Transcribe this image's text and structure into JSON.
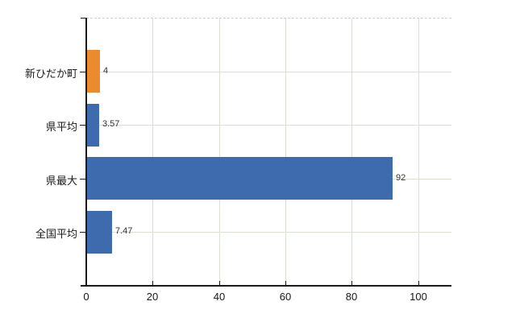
{
  "chart_data": {
    "type": "bar",
    "orientation": "horizontal",
    "title": "",
    "xlabel": "",
    "ylabel": "",
    "categories": [
      "新ひだか町",
      "県平均",
      "県最大",
      "全国平均"
    ],
    "values": [
      4,
      3.57,
      92,
      7.47
    ],
    "value_labels": [
      "4",
      "3.57",
      "92",
      "7.47"
    ],
    "bar_colors": [
      "#EB8B2D",
      "#3E6BAE",
      "#3E6BAE",
      "#3E6BAE"
    ],
    "x_tick_values": [
      0,
      20,
      40,
      60,
      80,
      100
    ],
    "x_tick_labels": [
      "0",
      "20",
      "40",
      "60",
      "80",
      "100"
    ],
    "xlim": [
      0,
      110
    ],
    "grid": true,
    "legend": false
  },
  "colors": {
    "orange_bar": "#EB8B2D",
    "blue_bar": "#3E6BAE",
    "gridline": "#DAE0D6",
    "axis": "#1A1A1A",
    "plot_top_border": "#D3CBD3",
    "text": "#1A1A1A",
    "value_label_text": "#333333",
    "background": "#FFFFFF"
  }
}
